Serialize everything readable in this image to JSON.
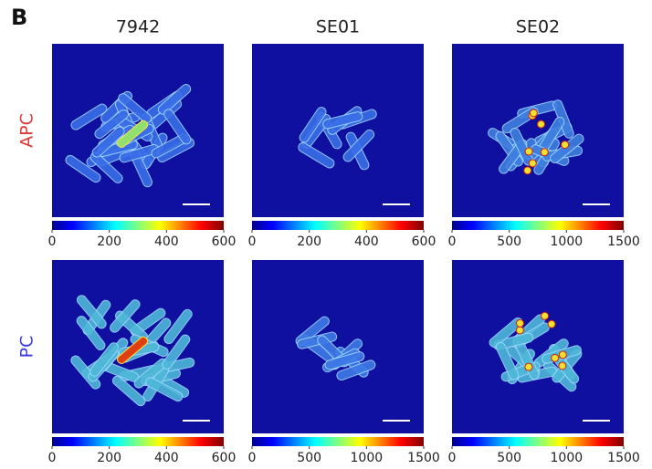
{
  "label": "B",
  "columns": [
    "7942",
    "SE01",
    "SE02"
  ],
  "rows": [
    {
      "label": "APC",
      "color": "#d93a3a",
      "panels": [
        {
          "clim": [
            0,
            600
          ],
          "ticks": [
            0,
            200,
            400,
            600
          ]
        },
        {
          "clim": [
            0,
            600
          ],
          "ticks": [
            0,
            200,
            400,
            600
          ]
        },
        {
          "clim": [
            0,
            1500
          ],
          "ticks": [
            0,
            500,
            1000,
            1500
          ]
        }
      ]
    },
    {
      "label": "PC",
      "color": "#3a3ad9",
      "panels": [
        {
          "clim": [
            0,
            600
          ],
          "ticks": [
            0,
            200,
            400,
            600
          ]
        },
        {
          "clim": [
            0,
            1500
          ],
          "ticks": [
            0,
            500,
            1000,
            1500
          ]
        },
        {
          "clim": [
            0,
            1500
          ],
          "ticks": [
            0,
            500,
            1000,
            1500
          ]
        }
      ]
    }
  ]
}
